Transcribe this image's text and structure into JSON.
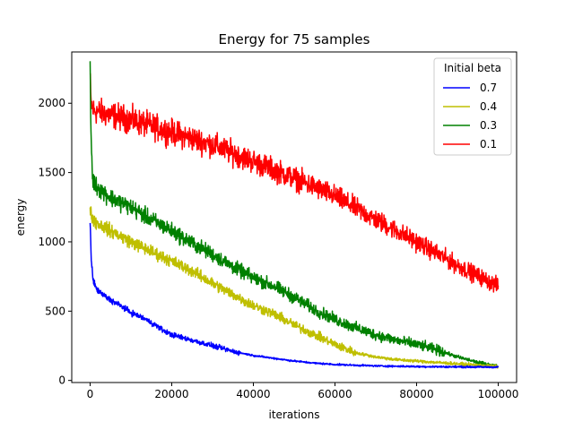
{
  "chart_data": {
    "type": "line",
    "title": "Energy for 75 samples",
    "xlabel": "iterations",
    "ylabel": "energy",
    "xlim": [
      -4500,
      104500
    ],
    "ylim": [
      -15,
      2370
    ],
    "xticks": [
      0,
      20000,
      40000,
      60000,
      80000,
      100000
    ],
    "xtick_labels": [
      "0",
      "20000",
      "40000",
      "60000",
      "80000",
      "100000"
    ],
    "yticks": [
      0,
      500,
      1000,
      1500,
      2000
    ],
    "ytick_labels": [
      "0",
      "500",
      "1000",
      "1500",
      "2000"
    ],
    "grid": false,
    "legend": {
      "title": "Initial beta",
      "placement": "top-right"
    },
    "series": [
      {
        "name": "0.7",
        "color": "#0000ff",
        "noise": 22,
        "x": [
          0,
          300,
          800,
          1500,
          3000,
          5000,
          8000,
          10000,
          13000,
          16000,
          18000,
          20000,
          25000,
          30000,
          35000,
          40000,
          45000,
          50000,
          55000,
          60000,
          70000,
          80000,
          90000,
          100000
        ],
        "y": [
          1150,
          850,
          720,
          660,
          620,
          580,
          530,
          490,
          450,
          400,
          360,
          330,
          290,
          250,
          210,
          180,
          160,
          140,
          125,
          115,
          105,
          100,
          98,
          96
        ]
      },
      {
        "name": "0.4",
        "color": "#bfbf00",
        "noise": 38,
        "x": [
          0,
          300,
          1000,
          5000,
          10000,
          15000,
          20000,
          25000,
          30000,
          35000,
          40000,
          45000,
          50000,
          55000,
          60000,
          65000,
          70000,
          75000,
          80000,
          85000,
          90000,
          95000,
          100000
        ],
        "y": [
          1250,
          1200,
          1150,
          1080,
          1000,
          930,
          860,
          790,
          700,
          620,
          540,
          480,
          400,
          330,
          260,
          200,
          170,
          150,
          140,
          130,
          120,
          110,
          100
        ]
      },
      {
        "name": "0.3",
        "color": "#008000",
        "noise": 45,
        "x": [
          0,
          200,
          600,
          1500,
          5000,
          10000,
          15000,
          20000,
          25000,
          30000,
          35000,
          40000,
          45000,
          50000,
          55000,
          60000,
          65000,
          70000,
          75000,
          80000,
          85000,
          90000,
          95000,
          100000
        ],
        "y": [
          2300,
          1800,
          1450,
          1400,
          1320,
          1250,
          1160,
          1080,
          990,
          910,
          820,
          740,
          680,
          600,
          510,
          440,
          380,
          330,
          290,
          260,
          220,
          170,
          130,
          100
        ]
      },
      {
        "name": "0.1",
        "color": "#ff0000",
        "noise": 55,
        "x": [
          0,
          200,
          800,
          3000,
          10000,
          20000,
          30000,
          40000,
          50000,
          60000,
          70000,
          80000,
          90000,
          100000
        ],
        "y": [
          2200,
          2000,
          1950,
          1930,
          1880,
          1790,
          1700,
          1580,
          1460,
          1330,
          1160,
          1000,
          830,
          680
        ]
      }
    ]
  }
}
